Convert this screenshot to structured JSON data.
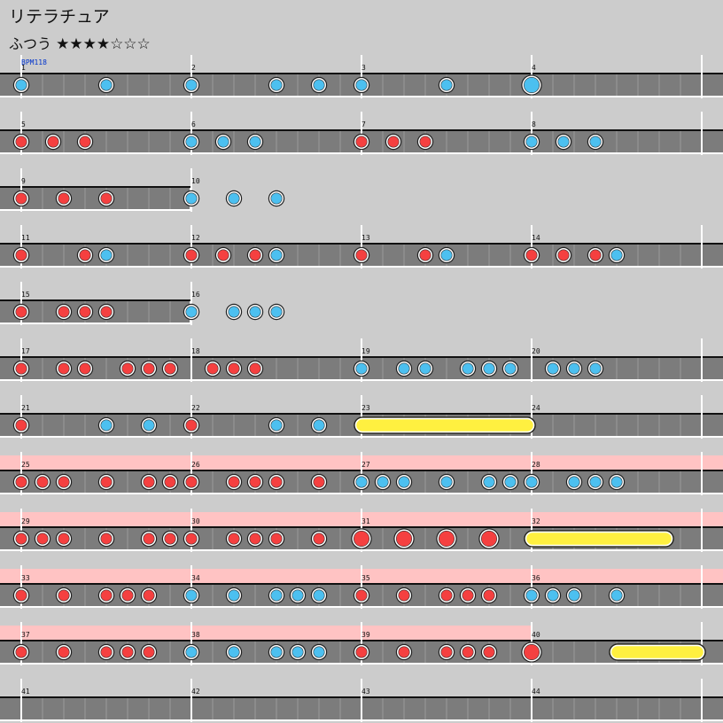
{
  "song": {
    "title": "リテラチュア",
    "difficulty_label": "ふつう",
    "stars": "★★★★☆☆☆",
    "star_filled": 4,
    "star_total": 7
  },
  "bpm_label": "BPM118",
  "colors": {
    "background": "#cccccc",
    "lane": "#7c7c7c",
    "gogo_band": "#ffc3c3",
    "don": "#f54040",
    "ka": "#4cc0f0",
    "drumroll": "#fff040"
  },
  "rows": [
    {
      "measures": [
        "1",
        "2",
        "3",
        "4"
      ],
      "beats": 16,
      "gogo": false,
      "notes": [
        {
          "b": 0,
          "t": "ka"
        },
        {
          "b": 4,
          "t": "ka"
        },
        {
          "b": 8,
          "t": "ka"
        },
        {
          "b": 12,
          "t": "ka"
        },
        {
          "b": 14,
          "t": "ka"
        },
        {
          "b": 16,
          "t": "ka"
        },
        {
          "b": 20,
          "t": "ka"
        },
        {
          "b": 24,
          "t": "KA"
        }
      ]
    },
    {
      "measures": [
        "5",
        "6",
        "7",
        "8"
      ],
      "beats": 16,
      "gogo": false,
      "notes": [
        {
          "b": 0,
          "t": "don"
        },
        {
          "b": 1.5,
          "t": "don"
        },
        {
          "b": 3,
          "t": "don"
        },
        {
          "b": 8,
          "t": "ka"
        },
        {
          "b": 9.5,
          "t": "ka"
        },
        {
          "b": 11,
          "t": "ka"
        },
        {
          "b": 16,
          "t": "don"
        },
        {
          "b": 17.5,
          "t": "don"
        },
        {
          "b": 19,
          "t": "don"
        },
        {
          "b": 24,
          "t": "ka"
        },
        {
          "b": 25.5,
          "t": "ka"
        },
        {
          "b": 27,
          "t": "ka"
        }
      ]
    },
    {
      "measures": [
        "9",
        "10"
      ],
      "beats": 8,
      "gogo": false,
      "notes": [
        {
          "b": 0,
          "t": "don"
        },
        {
          "b": 2,
          "t": "don"
        },
        {
          "b": 4,
          "t": "don"
        },
        {
          "b": 8,
          "t": "ka"
        },
        {
          "b": 10,
          "t": "ka"
        },
        {
          "b": 12,
          "t": "ka"
        }
      ]
    },
    {
      "measures": [
        "11",
        "12",
        "13",
        "14"
      ],
      "beats": 16,
      "gogo": false,
      "notes": [
        {
          "b": 0,
          "t": "don"
        },
        {
          "b": 3,
          "t": "don"
        },
        {
          "b": 4,
          "t": "ka"
        },
        {
          "b": 8,
          "t": "don"
        },
        {
          "b": 9.5,
          "t": "don"
        },
        {
          "b": 11,
          "t": "don"
        },
        {
          "b": 12,
          "t": "ka"
        },
        {
          "b": 16,
          "t": "don"
        },
        {
          "b": 19,
          "t": "don"
        },
        {
          "b": 20,
          "t": "ka"
        },
        {
          "b": 24,
          "t": "don"
        },
        {
          "b": 25.5,
          "t": "don"
        },
        {
          "b": 27,
          "t": "don"
        },
        {
          "b": 28,
          "t": "ka"
        }
      ]
    },
    {
      "measures": [
        "15",
        "16"
      ],
      "beats": 8,
      "gogo": false,
      "notes": [
        {
          "b": 0,
          "t": "don"
        },
        {
          "b": 2,
          "t": "don"
        },
        {
          "b": 3,
          "t": "don"
        },
        {
          "b": 4,
          "t": "don"
        },
        {
          "b": 8,
          "t": "ka"
        },
        {
          "b": 10,
          "t": "ka"
        },
        {
          "b": 11,
          "t": "ka"
        },
        {
          "b": 12,
          "t": "ka"
        }
      ]
    },
    {
      "measures": [
        "17",
        "18",
        "19",
        "20"
      ],
      "beats": 16,
      "gogo": false,
      "notes": [
        {
          "b": 0,
          "t": "don"
        },
        {
          "b": 2,
          "t": "don"
        },
        {
          "b": 3,
          "t": "don"
        },
        {
          "b": 5,
          "t": "don"
        },
        {
          "b": 6,
          "t": "don"
        },
        {
          "b": 7,
          "t": "don"
        },
        {
          "b": 9,
          "t": "don"
        },
        {
          "b": 10,
          "t": "don"
        },
        {
          "b": 11,
          "t": "don"
        },
        {
          "b": 16,
          "t": "ka"
        },
        {
          "b": 18,
          "t": "ka"
        },
        {
          "b": 19,
          "t": "ka"
        },
        {
          "b": 21,
          "t": "ka"
        },
        {
          "b": 22,
          "t": "ka"
        },
        {
          "b": 23,
          "t": "ka"
        },
        {
          "b": 25,
          "t": "ka"
        },
        {
          "b": 26,
          "t": "ka"
        },
        {
          "b": 27,
          "t": "ka"
        }
      ]
    },
    {
      "measures": [
        "21",
        "22",
        "23",
        "24"
      ],
      "beats": 16,
      "gogo": false,
      "notes": [
        {
          "b": 0,
          "t": "don"
        },
        {
          "b": 4,
          "t": "ka"
        },
        {
          "b": 6,
          "t": "ka"
        },
        {
          "b": 8,
          "t": "don"
        },
        {
          "b": 12,
          "t": "ka"
        },
        {
          "b": 14,
          "t": "ka"
        }
      ],
      "rolls": [
        {
          "start": 16,
          "end": 24
        }
      ]
    },
    {
      "measures": [
        "25",
        "26",
        "27",
        "28"
      ],
      "beats": 16,
      "gogo": true,
      "notes": [
        {
          "b": 0,
          "t": "don"
        },
        {
          "b": 1,
          "t": "don"
        },
        {
          "b": 2,
          "t": "don"
        },
        {
          "b": 4,
          "t": "don"
        },
        {
          "b": 6,
          "t": "don"
        },
        {
          "b": 7,
          "t": "don"
        },
        {
          "b": 8,
          "t": "don"
        },
        {
          "b": 10,
          "t": "don"
        },
        {
          "b": 11,
          "t": "don"
        },
        {
          "b": 12,
          "t": "don"
        },
        {
          "b": 14,
          "t": "don"
        },
        {
          "b": 16,
          "t": "ka"
        },
        {
          "b": 17,
          "t": "ka"
        },
        {
          "b": 18,
          "t": "ka"
        },
        {
          "b": 20,
          "t": "ka"
        },
        {
          "b": 22,
          "t": "ka"
        },
        {
          "b": 23,
          "t": "ka"
        },
        {
          "b": 24,
          "t": "ka"
        },
        {
          "b": 26,
          "t": "ka"
        },
        {
          "b": 27,
          "t": "ka"
        },
        {
          "b": 28,
          "t": "ka"
        }
      ]
    },
    {
      "measures": [
        "29",
        "30",
        "31",
        "32"
      ],
      "beats": 16,
      "gogo": true,
      "notes": [
        {
          "b": 0,
          "t": "don"
        },
        {
          "b": 1,
          "t": "don"
        },
        {
          "b": 2,
          "t": "don"
        },
        {
          "b": 4,
          "t": "don"
        },
        {
          "b": 6,
          "t": "don"
        },
        {
          "b": 7,
          "t": "don"
        },
        {
          "b": 8,
          "t": "don"
        },
        {
          "b": 10,
          "t": "don"
        },
        {
          "b": 11,
          "t": "don"
        },
        {
          "b": 12,
          "t": "don"
        },
        {
          "b": 14,
          "t": "don"
        },
        {
          "b": 16,
          "t": "DON"
        },
        {
          "b": 18,
          "t": "DON"
        },
        {
          "b": 20,
          "t": "DON"
        },
        {
          "b": 22,
          "t": "DON"
        }
      ],
      "rolls": [
        {
          "start": 24,
          "end": 30.5
        }
      ]
    },
    {
      "measures": [
        "33",
        "34",
        "35",
        "36"
      ],
      "beats": 16,
      "gogo": true,
      "notes": [
        {
          "b": 0,
          "t": "don"
        },
        {
          "b": 2,
          "t": "don"
        },
        {
          "b": 4,
          "t": "don"
        },
        {
          "b": 5,
          "t": "don"
        },
        {
          "b": 6,
          "t": "don"
        },
        {
          "b": 8,
          "t": "ka"
        },
        {
          "b": 10,
          "t": "ka"
        },
        {
          "b": 12,
          "t": "ka"
        },
        {
          "b": 13,
          "t": "ka"
        },
        {
          "b": 14,
          "t": "ka"
        },
        {
          "b": 16,
          "t": "don"
        },
        {
          "b": 18,
          "t": "don"
        },
        {
          "b": 20,
          "t": "don"
        },
        {
          "b": 21,
          "t": "don"
        },
        {
          "b": 22,
          "t": "don"
        },
        {
          "b": 24,
          "t": "ka"
        },
        {
          "b": 25,
          "t": "ka"
        },
        {
          "b": 26,
          "t": "ka"
        },
        {
          "b": 28,
          "t": "ka"
        }
      ]
    },
    {
      "measures": [
        "37",
        "38",
        "39",
        "40"
      ],
      "beats": 16,
      "gogo": true,
      "gogo_end_beat": 24,
      "notes": [
        {
          "b": 0,
          "t": "don"
        },
        {
          "b": 2,
          "t": "don"
        },
        {
          "b": 4,
          "t": "don"
        },
        {
          "b": 5,
          "t": "don"
        },
        {
          "b": 6,
          "t": "don"
        },
        {
          "b": 8,
          "t": "ka"
        },
        {
          "b": 10,
          "t": "ka"
        },
        {
          "b": 12,
          "t": "ka"
        },
        {
          "b": 13,
          "t": "ka"
        },
        {
          "b": 14,
          "t": "ka"
        },
        {
          "b": 16,
          "t": "don"
        },
        {
          "b": 18,
          "t": "don"
        },
        {
          "b": 20,
          "t": "don"
        },
        {
          "b": 21,
          "t": "don"
        },
        {
          "b": 22,
          "t": "don"
        },
        {
          "b": 24,
          "t": "DON"
        }
      ],
      "rolls": [
        {
          "start": 28,
          "end": 32
        }
      ]
    },
    {
      "measures": [
        "41",
        "42",
        "43",
        "44"
      ],
      "beats": 16,
      "gogo": false,
      "notes": []
    }
  ]
}
